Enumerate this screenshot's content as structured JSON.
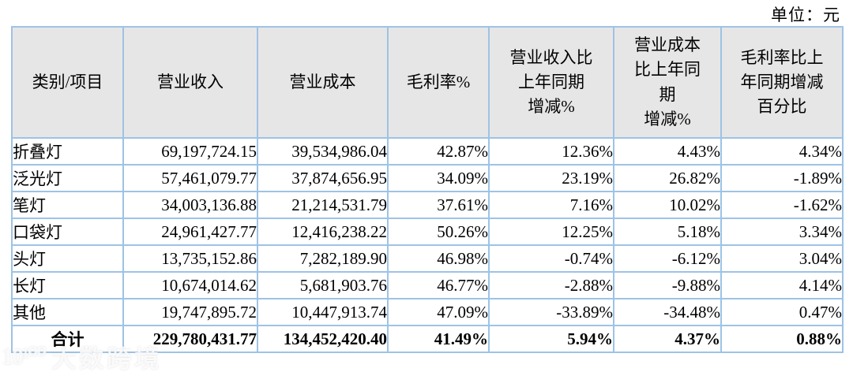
{
  "page": {
    "unit_label": "单位：元"
  },
  "table": {
    "columns": [
      {
        "label": "类别/项目"
      },
      {
        "label": "营业收入"
      },
      {
        "label": "营业成本"
      },
      {
        "label": "毛利率%"
      },
      {
        "label": "营业收入比\n上年同期\n增减%"
      },
      {
        "label": "营业成本\n比上年同\n期\n增减%"
      },
      {
        "label": "毛利率比上\n年同期增减\n百分比"
      }
    ],
    "rows": [
      {
        "category": "折叠灯",
        "values": [
          "69,197,724.15",
          "39,534,986.04",
          "42.87%",
          "12.36%",
          "4.43%",
          "4.34%"
        ]
      },
      {
        "category": "泛光灯",
        "values": [
          "57,461,079.77",
          "37,874,656.95",
          "34.09%",
          "23.19%",
          "26.82%",
          "-1.89%"
        ]
      },
      {
        "category": "笔灯",
        "values": [
          "34,003,136.88",
          "21,214,531.79",
          "37.61%",
          "7.16%",
          "10.02%",
          "-1.62%"
        ]
      },
      {
        "category": "口袋灯",
        "values": [
          "24,961,427.77",
          "12,416,238.22",
          "50.26%",
          "12.25%",
          "5.18%",
          "3.34%"
        ]
      },
      {
        "category": "头灯",
        "values": [
          "13,735,152.86",
          "7,282,189.90",
          "46.98%",
          "-0.74%",
          "-6.12%",
          "3.04%"
        ]
      },
      {
        "category": "长灯",
        "values": [
          "10,674,014.62",
          "5,681,903.76",
          "46.77%",
          "-2.88%",
          "-9.88%",
          "4.14%"
        ]
      },
      {
        "category": "其他",
        "values": [
          "19,747,895.72",
          "10,447,913.74",
          "47.09%",
          "-33.89%",
          "-34.48%",
          "0.47%"
        ]
      }
    ],
    "total_row": {
      "category": "合计",
      "values": [
        "229,780,431.77",
        "134,452,420.40",
        "41.49%",
        "5.94%",
        "4.37%",
        "0.88%"
      ]
    }
  },
  "watermark": {
    "logo": "10¹⁰⁰",
    "text": "大数跨境"
  },
  "colors": {
    "border": "#9dc3e6",
    "header_bg": "#e7e6e6",
    "text": "#000000"
  }
}
